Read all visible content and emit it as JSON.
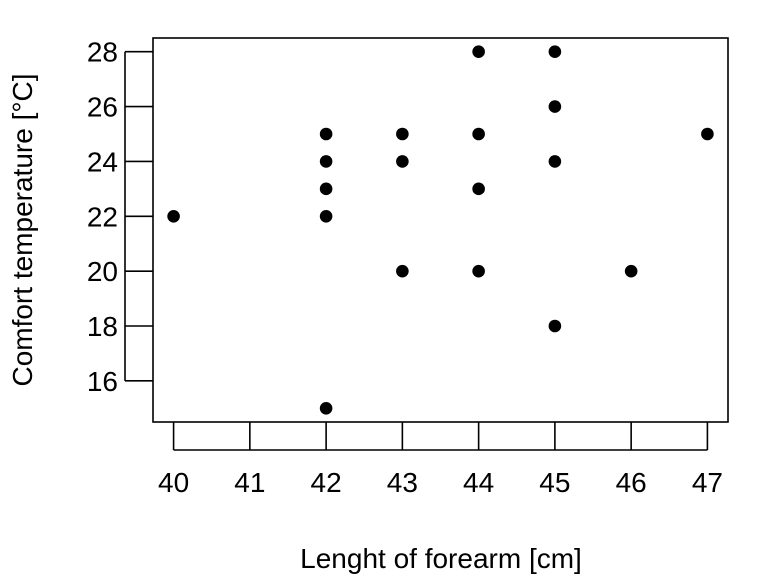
{
  "chart_data": {
    "type": "scatter",
    "title": "",
    "xlabel": "Lenght of forearm [cm]",
    "ylabel": "Comfort temperature [°C]",
    "xlim": [
      39.73,
      47.27
    ],
    "ylim": [
      14.5,
      28.5
    ],
    "x_ticks": [
      40,
      41,
      42,
      43,
      44,
      45,
      46,
      47
    ],
    "y_ticks": [
      16,
      18,
      20,
      22,
      24,
      26,
      28
    ],
    "grid": false,
    "legend": "none",
    "marker_color": "#000000",
    "points": [
      {
        "x": 40,
        "y": 22
      },
      {
        "x": 42,
        "y": 25
      },
      {
        "x": 42,
        "y": 24
      },
      {
        "x": 42,
        "y": 23
      },
      {
        "x": 42,
        "y": 22
      },
      {
        "x": 42,
        "y": 15
      },
      {
        "x": 43,
        "y": 25
      },
      {
        "x": 43,
        "y": 24
      },
      {
        "x": 43,
        "y": 20
      },
      {
        "x": 44,
        "y": 28
      },
      {
        "x": 44,
        "y": 25
      },
      {
        "x": 44,
        "y": 23
      },
      {
        "x": 44,
        "y": 20
      },
      {
        "x": 45,
        "y": 28
      },
      {
        "x": 45,
        "y": 26
      },
      {
        "x": 45,
        "y": 24
      },
      {
        "x": 45,
        "y": 18
      },
      {
        "x": 46,
        "y": 20
      },
      {
        "x": 47,
        "y": 25
      }
    ]
  }
}
